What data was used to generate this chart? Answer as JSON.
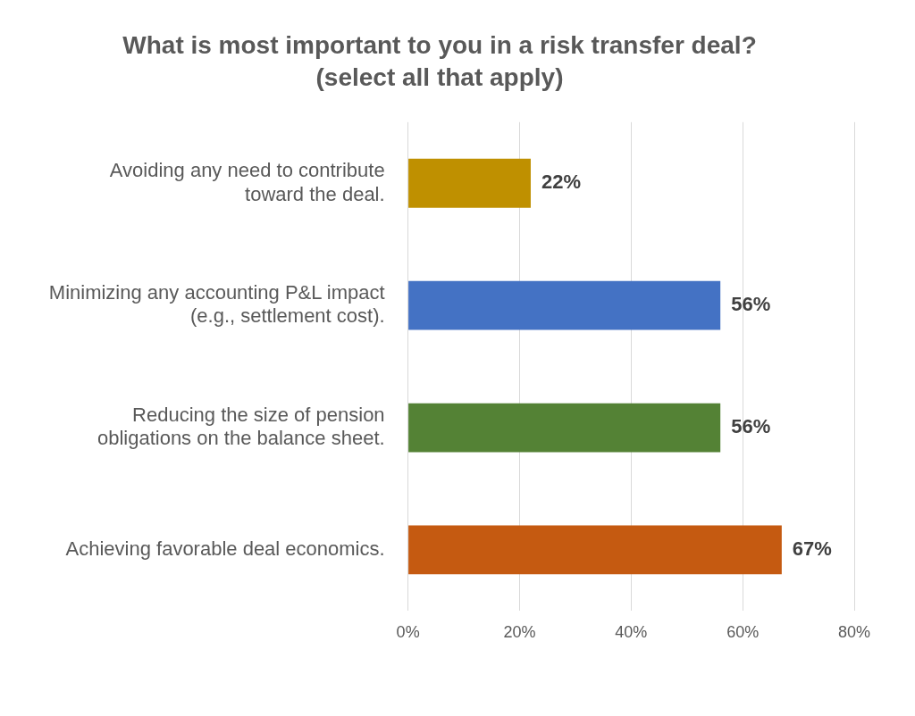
{
  "chart_data": {
    "type": "bar",
    "orientation": "horizontal",
    "title": "What is most important to you in a risk transfer deal?\n(select all that apply)",
    "categories": [
      "Avoiding any need to contribute toward the deal.",
      "Minimizing any accounting P&L impact (e.g., settlement cost).",
      "Reducing the size of pension obligations on the balance sheet.",
      "Achieving favorable deal economics."
    ],
    "values": [
      22,
      56,
      56,
      67
    ],
    "colors": [
      "#bf9000",
      "#4472c4",
      "#548235",
      "#c55a11"
    ],
    "value_labels": [
      "22%",
      "56%",
      "56%",
      "67%"
    ],
    "xlim": [
      0,
      80
    ],
    "xticks": [
      {
        "value": 0,
        "label": "0%"
      },
      {
        "value": 20,
        "label": "20%"
      },
      {
        "value": 40,
        "label": "40%"
      },
      {
        "value": 60,
        "label": "60%"
      },
      {
        "value": 80,
        "label": "80%"
      }
    ],
    "grid": "x",
    "legend": false
  }
}
